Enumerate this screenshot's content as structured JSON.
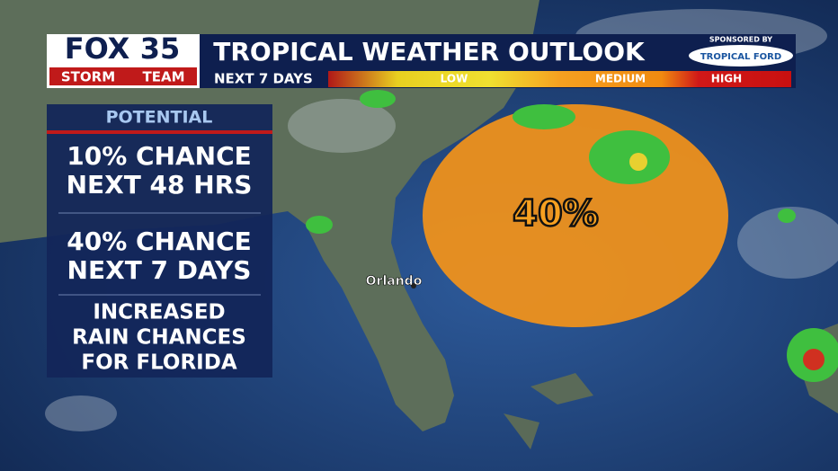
{
  "header": {
    "logo_brand": "FOX",
    "logo_number": "35",
    "logo_team": "STORM",
    "logo_team2": "TEAM",
    "title": "TROPICAL WEATHER OUTLOOK",
    "subtitle": "NEXT 7 DAYS",
    "sponsor_caption": "SPONSORED BY",
    "sponsor": "TROPICAL FORD"
  },
  "legend": [
    "LOW",
    "MEDIUM",
    "HIGH"
  ],
  "panel": {
    "heading": "POTENTIAL",
    "items": [
      [
        "10% CHANCE",
        "NEXT 48 HRS"
      ],
      [
        "40% CHANCE",
        "NEXT 7 DAYS"
      ],
      [
        "INCREASED",
        "RAIN CHANCES",
        "FOR FLORIDA"
      ]
    ]
  },
  "map": {
    "area_label": "40%",
    "city": "Orlando"
  }
}
